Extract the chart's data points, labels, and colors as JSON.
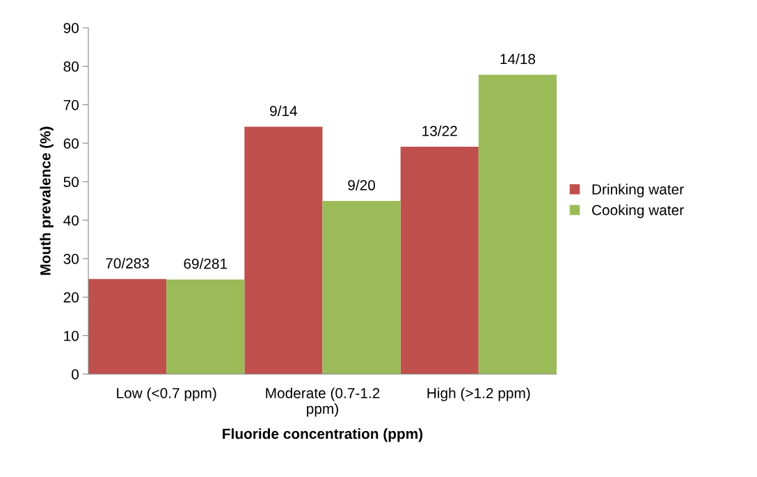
{
  "chart_data": {
    "type": "bar",
    "xlabel": "Fluoride concentration (ppm)",
    "ylabel": "Mouth prevalence (%)",
    "categories": [
      "Low (<0.7 ppm)",
      "Moderate (0.7-1.2 ppm)",
      "High (>1.2 ppm)"
    ],
    "series": [
      {
        "name": "Drinking water",
        "color": "#c0504d",
        "values": [
          24.7,
          64.3,
          59.1
        ],
        "value_labels": [
          "70/283",
          "9/14",
          "13/22"
        ]
      },
      {
        "name": "Cooking water",
        "color": "#9bbb59",
        "values": [
          24.6,
          45.0,
          77.8
        ],
        "value_labels": [
          "69/281",
          "9/20",
          "14/18"
        ]
      }
    ],
    "ylim": [
      0,
      90
    ],
    "yticks": [
      0,
      10,
      20,
      30,
      40,
      50,
      60,
      70,
      80,
      90
    ],
    "grid": false,
    "legend": "right"
  }
}
